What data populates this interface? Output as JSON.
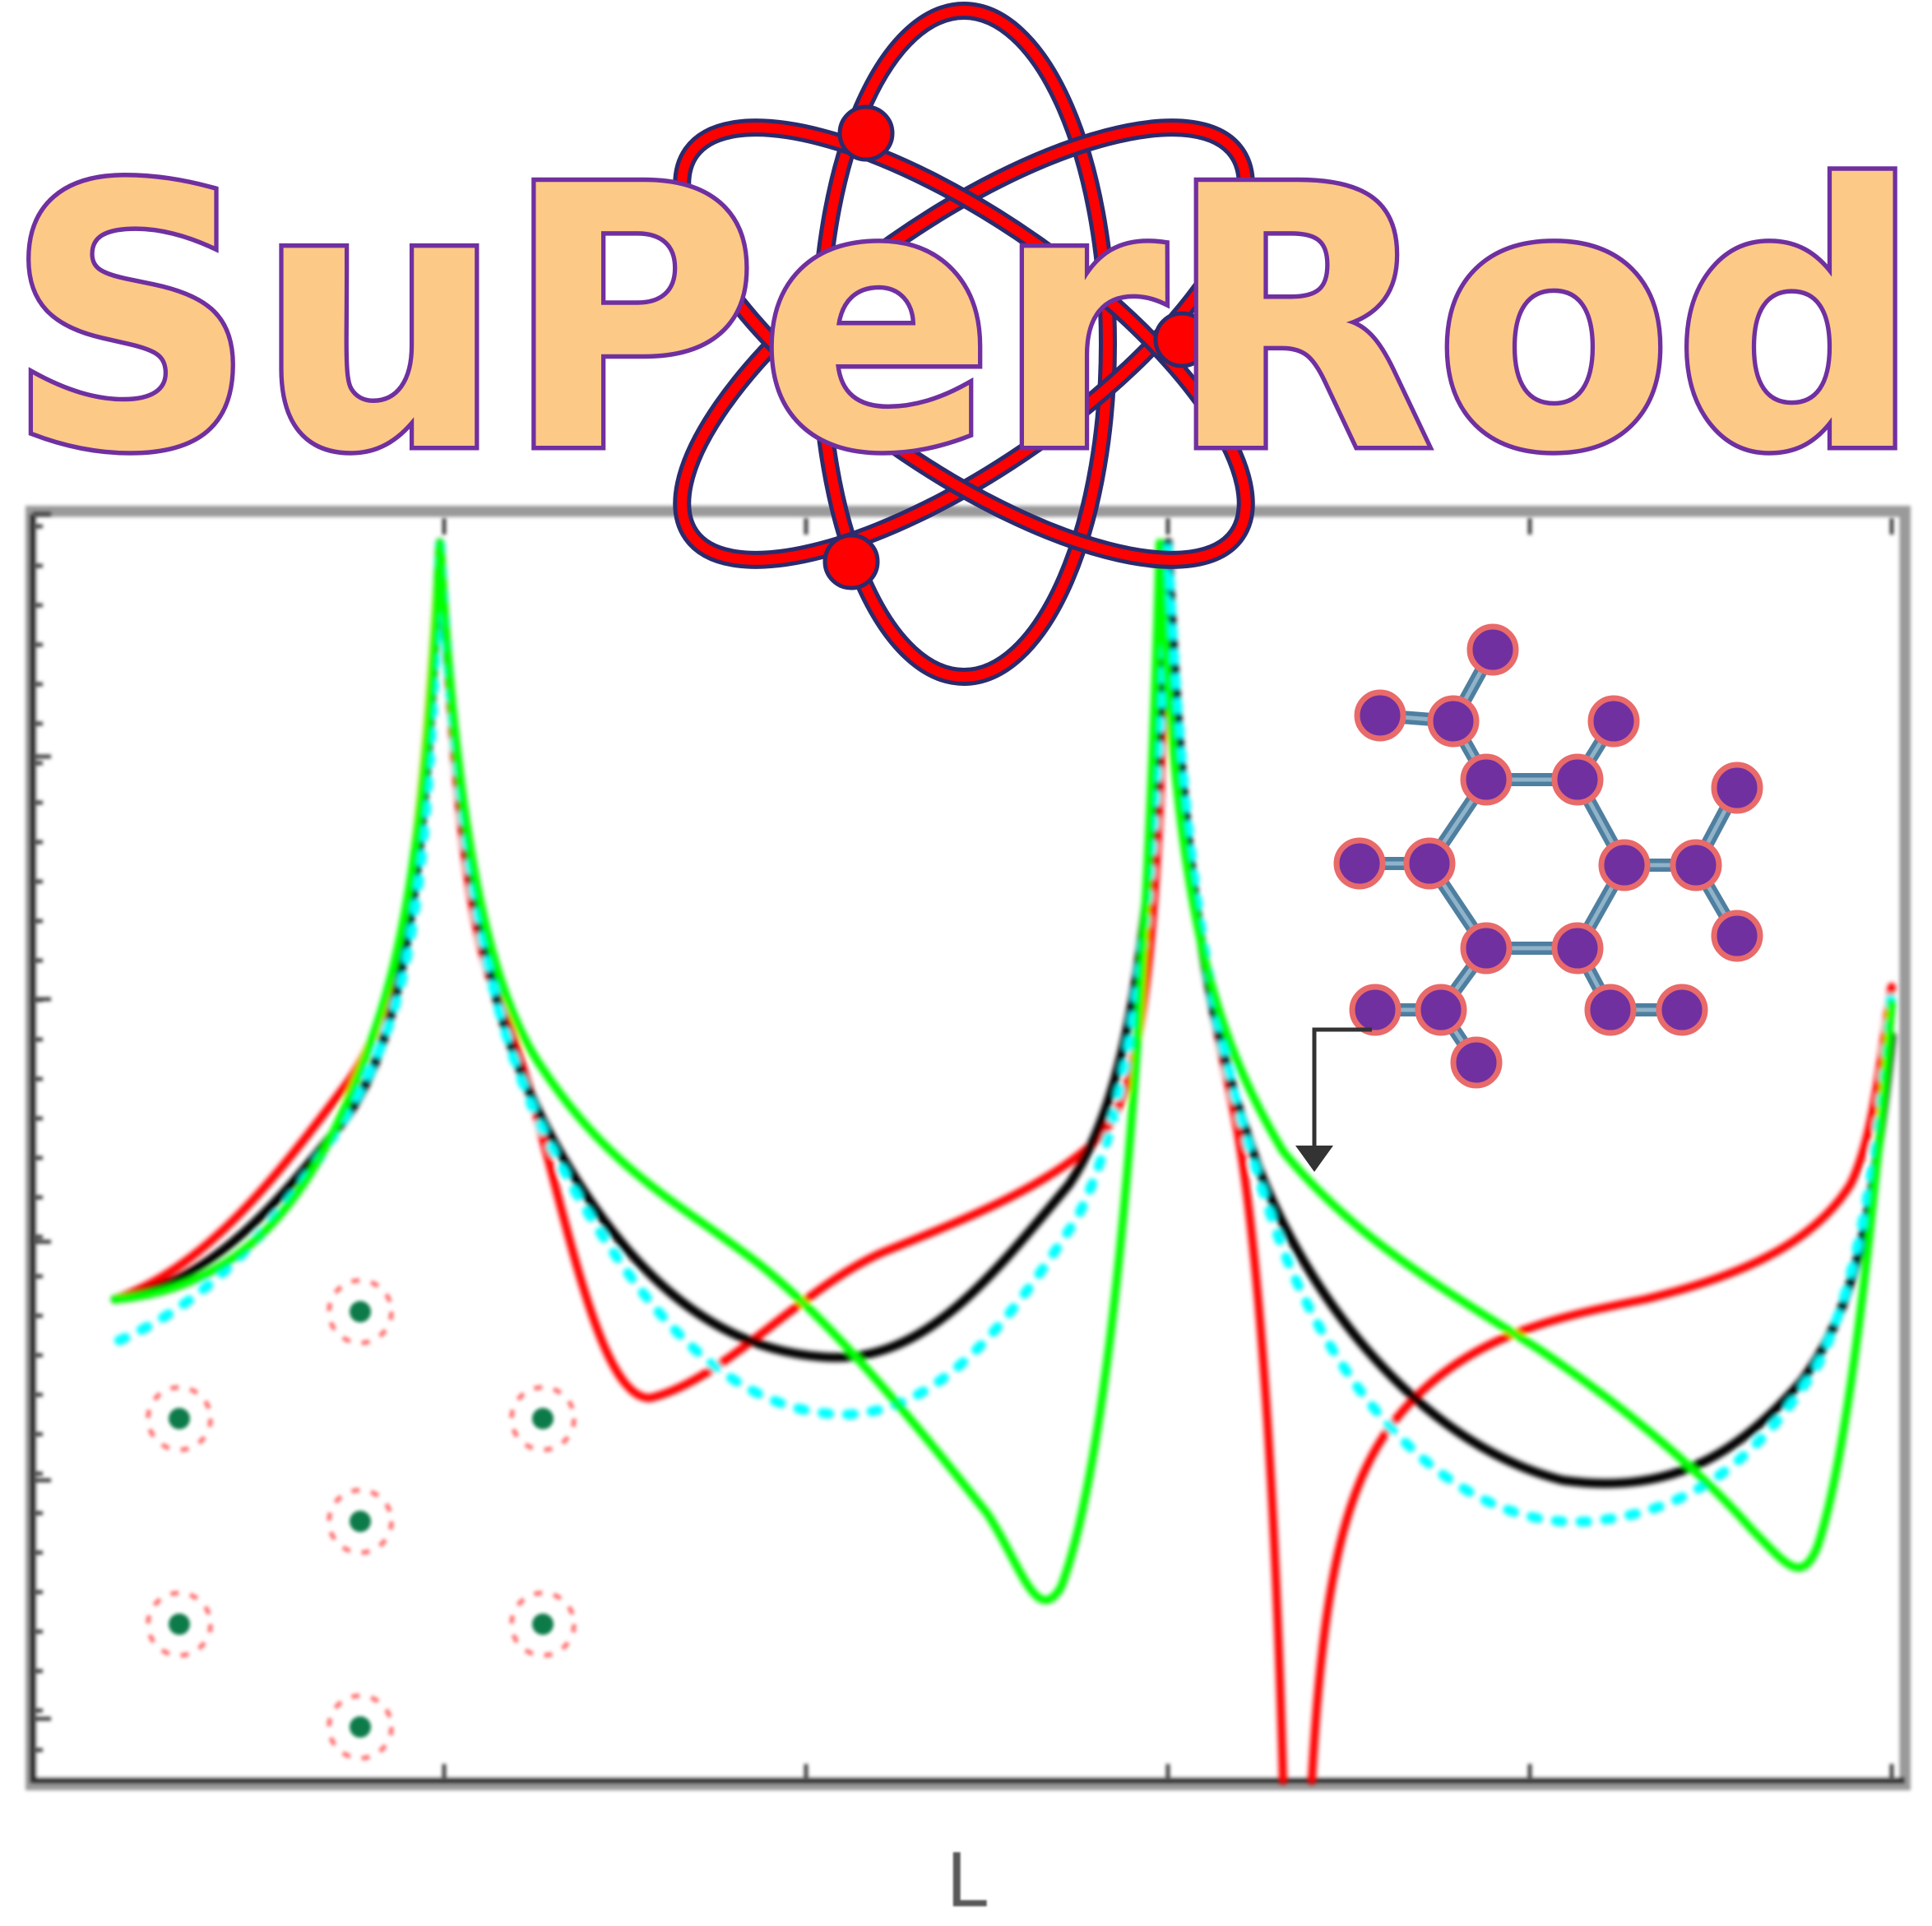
{
  "logo": {
    "text": "SuPerRod",
    "fill_color": "#fdc987",
    "outline_color": "#7030a0",
    "atom_orbit_color": "#ff0000",
    "atom_outline_color": "#2b2b6e"
  },
  "chart": {
    "xlabel": "L",
    "series_colors": [
      "#ff0000",
      "#000000",
      "#00ffff",
      "#00ff00"
    ]
  },
  "molecule": {
    "atom_fill": "#7030a0",
    "atom_stroke": "#e86a6a",
    "bond_color": "#4f7fa0"
  },
  "lattice": {
    "atom_center_color": "#0a7a4a",
    "atom_halo_color": "#ff4444"
  }
}
